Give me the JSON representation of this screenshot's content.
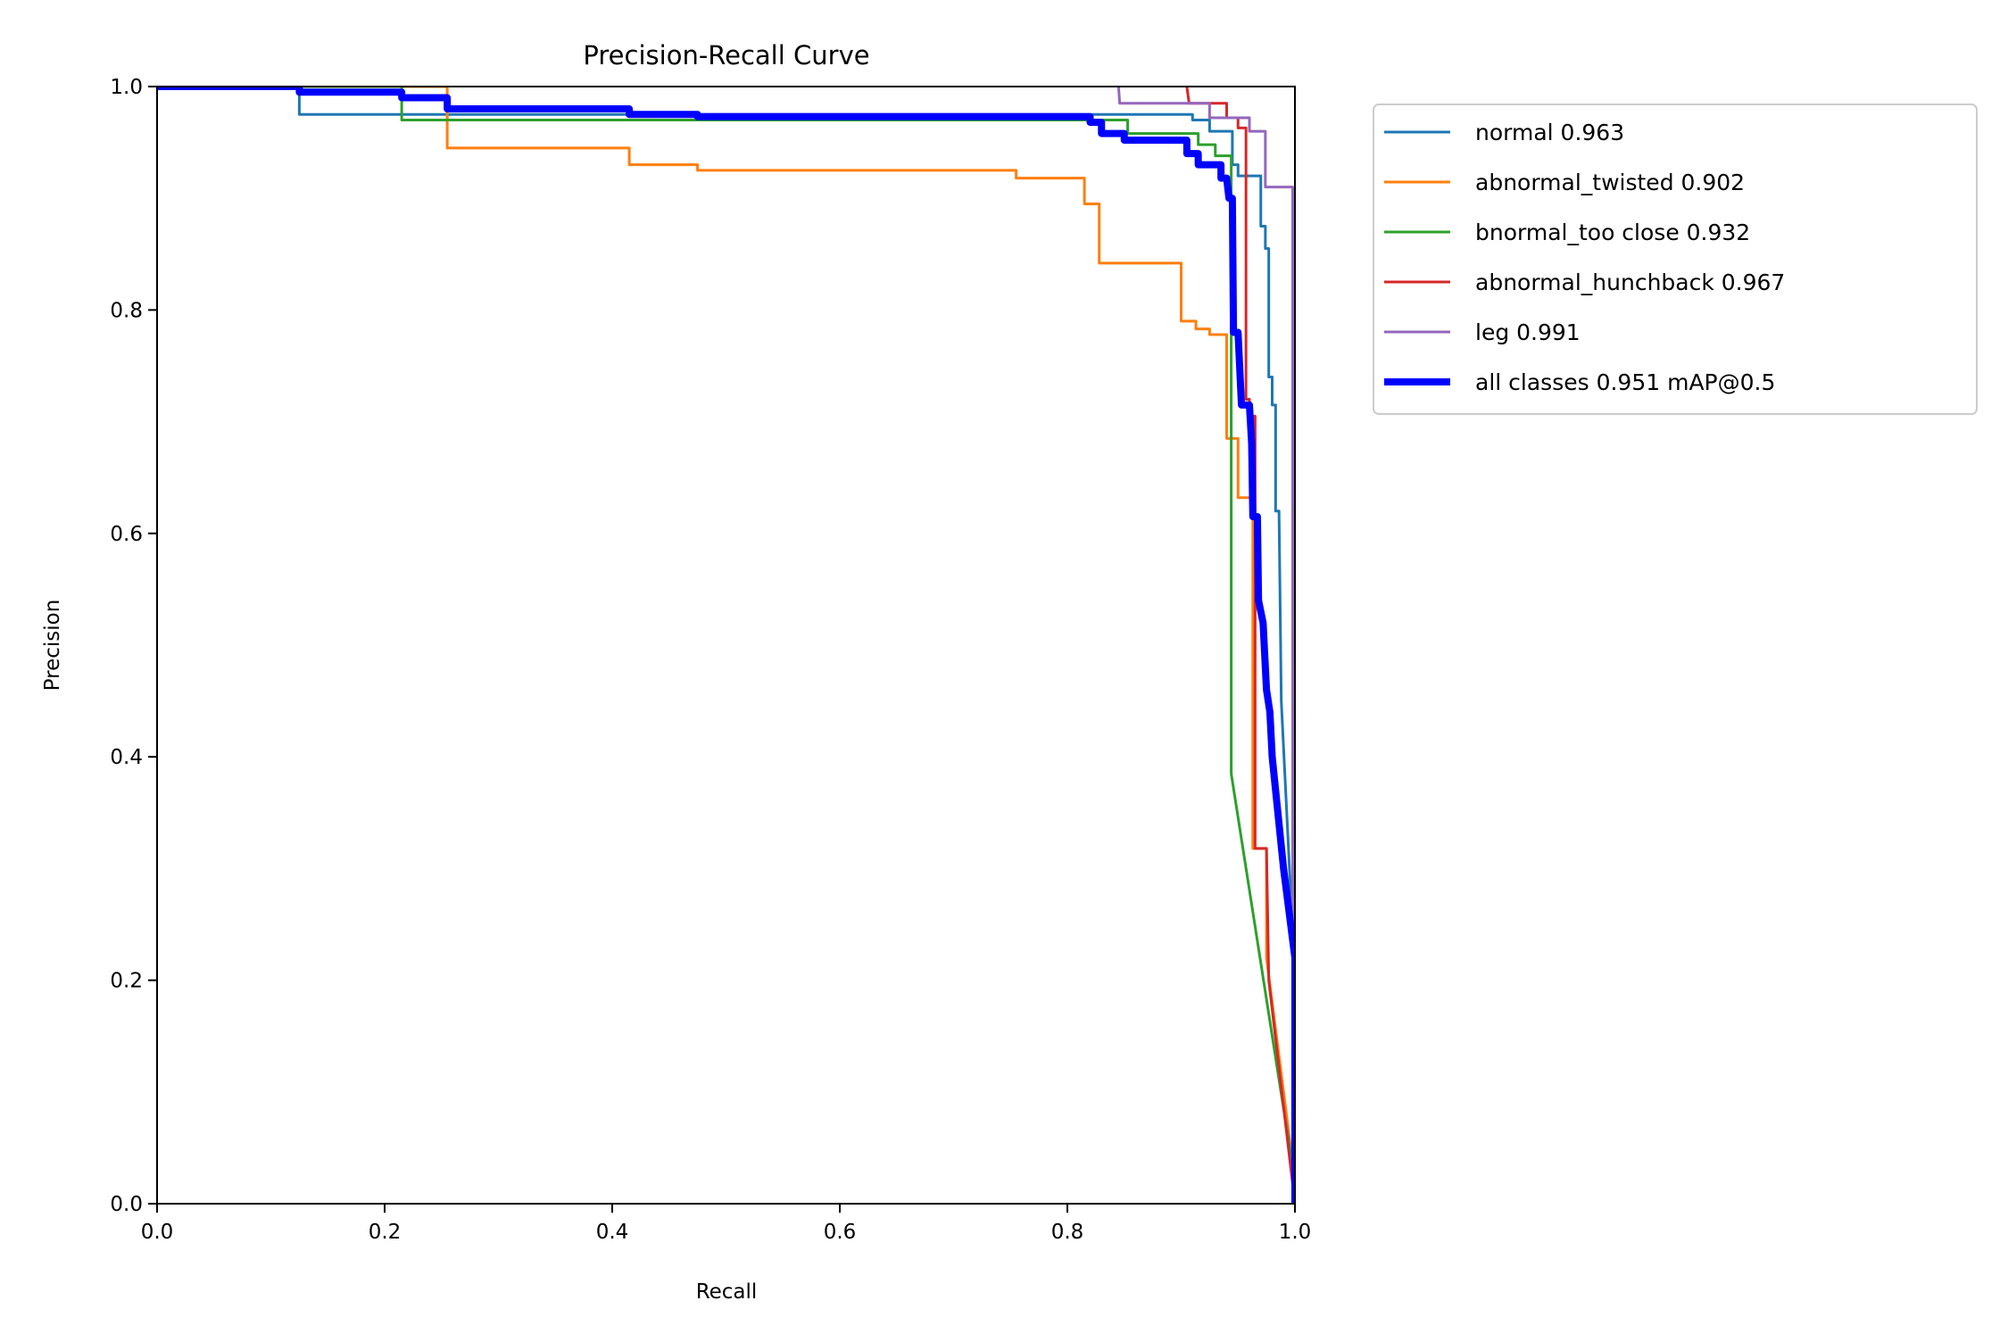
{
  "chart_data": {
    "type": "line",
    "title": "Precision-Recall Curve",
    "xlabel": "Recall",
    "ylabel": "Precision",
    "xlim": [
      0,
      1
    ],
    "ylim": [
      0,
      1
    ],
    "xticks": [
      "0.0",
      "0.2",
      "0.4",
      "0.6",
      "0.8",
      "1.0"
    ],
    "yticks": [
      "0.0",
      "0.2",
      "0.4",
      "0.6",
      "0.8",
      "1.0"
    ],
    "grid": false,
    "legend_placement": "outside-top-right",
    "series": [
      {
        "name": "normal 0.963",
        "color": "#1f77b4",
        "width": 3,
        "points": [
          [
            0,
            1
          ],
          [
            0.125,
            1
          ],
          [
            0.125,
            0.975
          ],
          [
            0.91,
            0.975
          ],
          [
            0.91,
            0.97
          ],
          [
            0.925,
            0.97
          ],
          [
            0.925,
            0.96
          ],
          [
            0.945,
            0.96
          ],
          [
            0.945,
            0.93
          ],
          [
            0.95,
            0.93
          ],
          [
            0.95,
            0.92
          ],
          [
            0.97,
            0.92
          ],
          [
            0.97,
            0.875
          ],
          [
            0.974,
            0.875
          ],
          [
            0.974,
            0.855
          ],
          [
            0.977,
            0.855
          ],
          [
            0.977,
            0.74
          ],
          [
            0.98,
            0.74
          ],
          [
            0.98,
            0.715
          ],
          [
            0.983,
            0.715
          ],
          [
            0.983,
            0.62
          ],
          [
            0.986,
            0.62
          ],
          [
            0.988,
            0.45
          ],
          [
            1.0,
            0.2
          ],
          [
            1.0,
            0
          ]
        ]
      },
      {
        "name": "abnormal_twisted 0.902",
        "color": "#ff7f0e",
        "width": 3,
        "points": [
          [
            0,
            1
          ],
          [
            0.255,
            1
          ],
          [
            0.255,
            0.945
          ],
          [
            0.415,
            0.945
          ],
          [
            0.415,
            0.93
          ],
          [
            0.475,
            0.93
          ],
          [
            0.475,
            0.925
          ],
          [
            0.755,
            0.925
          ],
          [
            0.755,
            0.918
          ],
          [
            0.815,
            0.918
          ],
          [
            0.815,
            0.895
          ],
          [
            0.828,
            0.895
          ],
          [
            0.828,
            0.842
          ],
          [
            0.9,
            0.842
          ],
          [
            0.9,
            0.79
          ],
          [
            0.913,
            0.79
          ],
          [
            0.913,
            0.783
          ],
          [
            0.925,
            0.783
          ],
          [
            0.925,
            0.778
          ],
          [
            0.94,
            0.778
          ],
          [
            0.94,
            0.685
          ],
          [
            0.95,
            0.685
          ],
          [
            0.95,
            0.632
          ],
          [
            0.963,
            0.632
          ],
          [
            0.963,
            0.318
          ],
          [
            0.975,
            0.318
          ],
          [
            0.975,
            0.22
          ],
          [
            1.0,
            0.02
          ],
          [
            1.0,
            0
          ]
        ]
      },
      {
        "name": "bnormal_too close 0.932",
        "color": "#2ca02c",
        "width": 3,
        "points": [
          [
            0,
            1
          ],
          [
            0.215,
            1
          ],
          [
            0.215,
            0.97
          ],
          [
            0.853,
            0.97
          ],
          [
            0.853,
            0.958
          ],
          [
            0.915,
            0.958
          ],
          [
            0.915,
            0.948
          ],
          [
            0.93,
            0.948
          ],
          [
            0.93,
            0.938
          ],
          [
            0.944,
            0.938
          ],
          [
            0.944,
            0.385
          ],
          [
            1.0,
            0.02
          ],
          [
            1.0,
            0
          ]
        ]
      },
      {
        "name": "abnormal_hunchback 0.967",
        "color": "#d62728",
        "width": 3,
        "points": [
          [
            0.905,
            1.0
          ],
          [
            0.907,
            0.985
          ],
          [
            0.94,
            0.985
          ],
          [
            0.94,
            0.972
          ],
          [
            0.95,
            0.972
          ],
          [
            0.95,
            0.963
          ],
          [
            0.957,
            0.963
          ],
          [
            0.957,
            0.72
          ],
          [
            0.96,
            0.72
          ],
          [
            0.96,
            0.705
          ],
          [
            0.965,
            0.705
          ],
          [
            0.965,
            0.318
          ],
          [
            0.975,
            0.318
          ],
          [
            0.977,
            0.2
          ],
          [
            1.0,
            0.0
          ]
        ]
      },
      {
        "name": "leg 0.991",
        "color": "#9467bd",
        "width": 3,
        "points": [
          [
            0.845,
            1.0
          ],
          [
            0.846,
            0.985
          ],
          [
            0.925,
            0.985
          ],
          [
            0.925,
            0.972
          ],
          [
            0.96,
            0.972
          ],
          [
            0.96,
            0.96
          ],
          [
            0.974,
            0.96
          ],
          [
            0.974,
            0.91
          ],
          [
            0.998,
            0.91
          ],
          [
            0.998,
            0.0
          ]
        ]
      },
      {
        "name": "all classes 0.951 mAP@0.5",
        "color": "#0000ff",
        "width": 8,
        "points": [
          [
            0,
            1
          ],
          [
            0.125,
            1
          ],
          [
            0.125,
            0.995
          ],
          [
            0.215,
            0.995
          ],
          [
            0.215,
            0.99
          ],
          [
            0.255,
            0.99
          ],
          [
            0.255,
            0.98
          ],
          [
            0.415,
            0.98
          ],
          [
            0.415,
            0.975
          ],
          [
            0.475,
            0.975
          ],
          [
            0.475,
            0.973
          ],
          [
            0.82,
            0.973
          ],
          [
            0.82,
            0.968
          ],
          [
            0.83,
            0.968
          ],
          [
            0.83,
            0.958
          ],
          [
            0.85,
            0.958
          ],
          [
            0.85,
            0.952
          ],
          [
            0.905,
            0.952
          ],
          [
            0.905,
            0.94
          ],
          [
            0.915,
            0.94
          ],
          [
            0.915,
            0.93
          ],
          [
            0.935,
            0.93
          ],
          [
            0.935,
            0.918
          ],
          [
            0.94,
            0.918
          ],
          [
            0.942,
            0.9
          ],
          [
            0.945,
            0.9
          ],
          [
            0.946,
            0.78
          ],
          [
            0.95,
            0.78
          ],
          [
            0.953,
            0.715
          ],
          [
            0.96,
            0.715
          ],
          [
            0.962,
            0.68
          ],
          [
            0.963,
            0.615
          ],
          [
            0.967,
            0.615
          ],
          [
            0.968,
            0.54
          ],
          [
            0.972,
            0.52
          ],
          [
            0.975,
            0.46
          ],
          [
            0.978,
            0.44
          ],
          [
            0.98,
            0.4
          ],
          [
            0.985,
            0.35
          ],
          [
            0.99,
            0.3
          ],
          [
            1.0,
            0.22
          ],
          [
            1.0,
            0
          ]
        ]
      }
    ]
  }
}
